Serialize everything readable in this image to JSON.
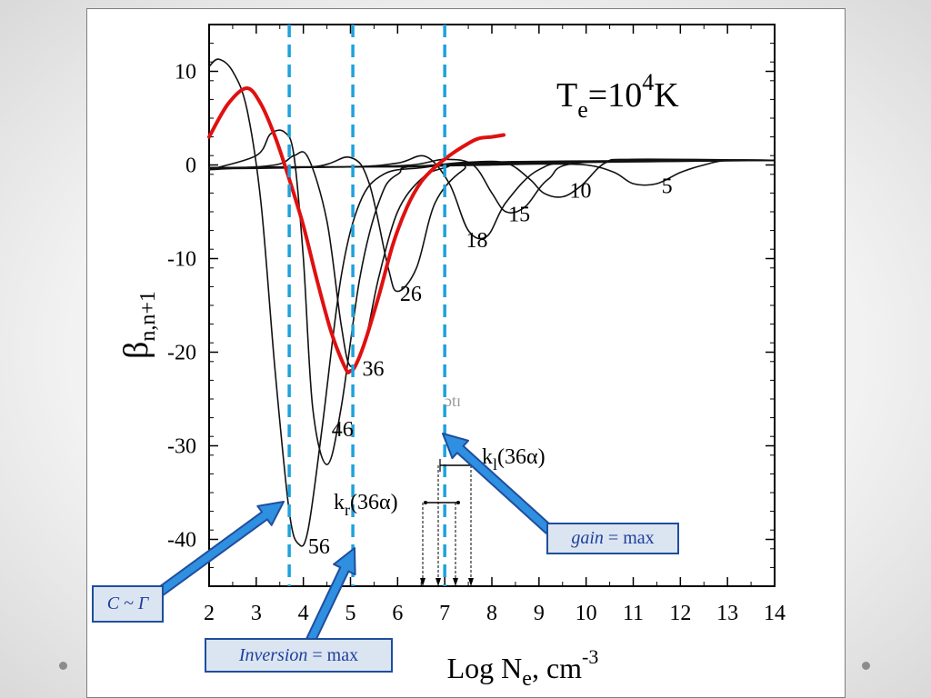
{
  "chart_data": {
    "type": "line",
    "title": "",
    "annotation_temp": {
      "prefix": "T",
      "sub": "e",
      "mid": "=10",
      "sup": "4",
      "suffix": "K"
    },
    "xlabel": {
      "main": "Log N",
      "sub": "e",
      "after": ", cm",
      "sup": "-3"
    },
    "ylabel": {
      "main": "β",
      "sub": "n,n+1"
    },
    "xlim": [
      2,
      14
    ],
    "ylim": [
      -45,
      15
    ],
    "x_ticks": [
      "2",
      "3",
      "4",
      "5",
      "6",
      "7",
      "8",
      "9",
      "10",
      "11",
      "12",
      "13",
      "14"
    ],
    "y_ticks": [
      "10",
      "0",
      "-10",
      "-20",
      "-30",
      "-40"
    ],
    "y_tick_values": [
      10,
      0,
      -10,
      -20,
      -30,
      -40
    ],
    "grid": false,
    "series": [
      {
        "name": "5",
        "label_at": [
          11.6,
          -3.0
        ],
        "color": "#111111",
        "x": [
          2,
          4,
          6,
          7,
          8,
          9,
          10,
          10.6,
          11.0,
          11.5,
          12,
          12.5,
          13,
          14
        ],
        "y": [
          -0.3,
          -0.2,
          -0.2,
          -0.1,
          0.0,
          0.1,
          0.0,
          -0.8,
          -2.0,
          -2.0,
          -0.8,
          0.0,
          0.5,
          0.5
        ]
      },
      {
        "name": "10",
        "label_at": [
          9.65,
          -3.5
        ],
        "color": "#111111",
        "x": [
          2,
          5,
          6.5,
          7.5,
          8.3,
          8.8,
          9.1,
          9.5,
          9.9,
          10.4,
          11,
          14
        ],
        "y": [
          -0.3,
          -0.2,
          -0.1,
          0.3,
          0.2,
          -1.5,
          -3.0,
          -3.4,
          -2.2,
          0.2,
          0.6,
          0.5
        ]
      },
      {
        "name": "15",
        "label_at": [
          8.35,
          -6.0
        ],
        "color": "#111111",
        "x": [
          2,
          5,
          6.3,
          7.0,
          7.6,
          8.0,
          8.3,
          8.7,
          9.2,
          10,
          14
        ],
        "y": [
          -0.3,
          -0.2,
          0.0,
          0.6,
          0.0,
          -3.0,
          -5.0,
          -4.5,
          -1.5,
          0.3,
          0.5
        ]
      },
      {
        "name": "18",
        "label_at": [
          7.45,
          -8.8
        ],
        "color": "#111111",
        "x": [
          2,
          5,
          6.0,
          6.6,
          7.1,
          7.5,
          7.9,
          8.3,
          9,
          10,
          14
        ],
        "y": [
          -0.3,
          -0.2,
          0.2,
          0.9,
          -2.0,
          -7.0,
          -7.6,
          -4.0,
          -0.5,
          0.3,
          0.5
        ]
      },
      {
        "name": "26",
        "label_at": [
          6.05,
          -14.5
        ],
        "color": "#111111",
        "x": [
          2,
          4.2,
          5.0,
          5.4,
          5.8,
          6.0,
          6.4,
          6.8,
          7.4,
          8,
          14
        ],
        "y": [
          -0.4,
          -0.2,
          0.8,
          -2.0,
          -11.0,
          -13.5,
          -11.0,
          -4.0,
          -0.5,
          0.3,
          0.5
        ]
      },
      {
        "name": "36",
        "label_at": [
          5.25,
          -22.5
        ],
        "color": "#111111",
        "x": [
          2,
          3.4,
          3.8,
          4.1,
          4.5,
          4.8,
          5.0,
          5.3,
          5.6,
          6.0,
          6.5,
          7,
          8,
          14
        ],
        "y": [
          -0.5,
          0.0,
          1.0,
          0.8,
          -6.0,
          -17.0,
          -21.5,
          -19.0,
          -12.0,
          -5.0,
          -1.5,
          -0.3,
          0.3,
          0.5
        ]
      },
      {
        "name": "46",
        "label_at": [
          4.6,
          -29.0
        ],
        "color": "#111111",
        "x": [
          2,
          3.0,
          3.3,
          3.6,
          3.8,
          4.0,
          4.2,
          4.5,
          4.8,
          5.2,
          5.6,
          6,
          7,
          14
        ],
        "y": [
          -0.5,
          1.0,
          3.3,
          3.5,
          1.0,
          -10.0,
          -26.0,
          -32.0,
          -26.0,
          -12.0,
          -4.0,
          -1.0,
          0.0,
          0.5
        ]
      },
      {
        "name": "56",
        "label_at": [
          4.1,
          -41.5
        ],
        "color": "#111111",
        "x": [
          2,
          2.2,
          2.5,
          2.8,
          3.1,
          3.4,
          3.7,
          3.9,
          4.1,
          4.4,
          4.8,
          5.2,
          5.7,
          6.5,
          8,
          14
        ],
        "y": [
          10.5,
          11.3,
          10.0,
          6.0,
          -4.0,
          -22.0,
          -37.0,
          -40.5,
          -39.0,
          -28.0,
          -12.0,
          -4.0,
          -1.0,
          -0.3,
          0.2,
          0.5
        ]
      },
      {
        "name": "",
        "label_at": null,
        "color": "#e01010",
        "width": 4,
        "x": [
          2,
          2.4,
          2.8,
          3.1,
          3.4,
          3.7,
          4.0,
          4.3,
          4.6,
          4.9,
          5.0,
          5.1,
          5.3,
          5.6,
          5.9,
          6.2,
          6.5,
          6.8,
          7.1,
          7.4,
          7.7,
          8.0,
          8.25
        ],
        "y": [
          3.0,
          6.5,
          8.2,
          6.5,
          3.0,
          -1.5,
          -6.5,
          -12.5,
          -18.0,
          -21.8,
          -22.0,
          -21.5,
          -19.0,
          -14.0,
          -8.5,
          -4.5,
          -1.8,
          -0.2,
          1.0,
          2.0,
          2.8,
          3.0,
          3.2
        ]
      }
    ],
    "vlines": [
      3.7,
      5.05,
      7.0
    ],
    "vline_color": "#1ea2dc",
    "inset": {
      "label_r": {
        "main": "k",
        "sub": "r",
        "after": "(36α)"
      },
      "label_l": {
        "main": "k",
        "sub": "l",
        "after": "(36α)"
      },
      "faint_text": "ɔtɪ"
    },
    "callouts": [
      {
        "id": "c-gamma",
        "italic": "C ~ Γ",
        "rest": ""
      },
      {
        "id": "inversion",
        "italic": "Inversion",
        "rest": " = max"
      },
      {
        "id": "gain",
        "italic": "gain",
        "rest": " = max"
      }
    ]
  }
}
